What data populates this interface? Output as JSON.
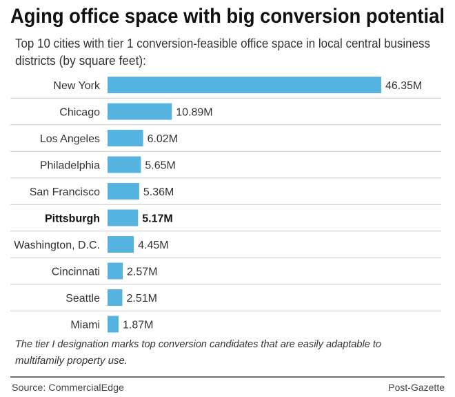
{
  "chart_data": {
    "type": "bar",
    "orientation": "horizontal",
    "title": "Aging office space with big conversion potential",
    "subtitle": [
      "Top 10 cities with tier 1 conversion-feasible office space in local central business",
      "districts (by square feet):"
    ],
    "categories": [
      "New York",
      "Chicago",
      "Los Angeles",
      "Philadelphia",
      "San Francisco",
      "Pittsburgh",
      "Washington, D.C.",
      "Cincinnati",
      "Seattle",
      "Miami"
    ],
    "values": [
      46.35,
      10.89,
      6.02,
      5.65,
      5.36,
      5.17,
      4.45,
      2.57,
      2.51,
      1.87
    ],
    "value_labels": [
      "46.35M",
      "10.89M",
      "6.02M",
      "5.65M",
      "5.36M",
      "5.17M",
      "4.45M",
      "2.57M",
      "2.51M",
      "1.87M"
    ],
    "highlight": "Pittsburgh",
    "unit": "million square feet",
    "xlim": [
      0,
      46.35
    ],
    "bar_color": "#56b2df",
    "grid": false,
    "note": [
      "The tier I designation marks top conversion candidates that are easily adaptable to",
      "multifamily property use."
    ],
    "source": "Source: CommercialEdge",
    "credit": "Post-Gazette"
  }
}
